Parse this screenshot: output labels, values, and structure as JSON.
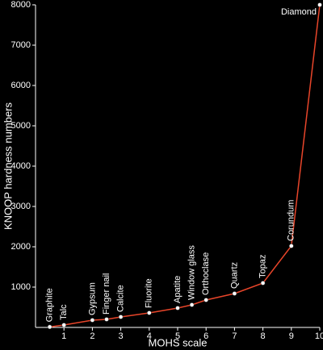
{
  "chart_data": {
    "type": "line",
    "x_label": "MOHS scale",
    "y_label": "KNOOP hardness numbers",
    "x": [
      0.5,
      1,
      2,
      2.5,
      3,
      4,
      5,
      5.5,
      6,
      7,
      8,
      9,
      10
    ],
    "values": [
      12,
      60,
      180,
      200,
      260,
      360,
      480,
      560,
      680,
      840,
      1100,
      2020,
      8000
    ],
    "point_labels": [
      "Graphite",
      "Talc",
      "Gypsum",
      "Finger nail",
      "Calcite",
      "Fluorite",
      "Apatite",
      "Window glass",
      "Orthoclase",
      "Quartz",
      "Topaz",
      "Corundum",
      "Diamond"
    ],
    "color": "#e8452a",
    "xlim": [
      0,
      10
    ],
    "xticks": [
      1,
      2,
      3,
      4,
      5,
      6,
      7,
      8,
      9,
      10
    ],
    "ylim": [
      0,
      8000
    ],
    "yticks": [
      1000,
      2000,
      3000,
      4000,
      5000,
      6000,
      7000,
      8000
    ],
    "grid": false
  }
}
